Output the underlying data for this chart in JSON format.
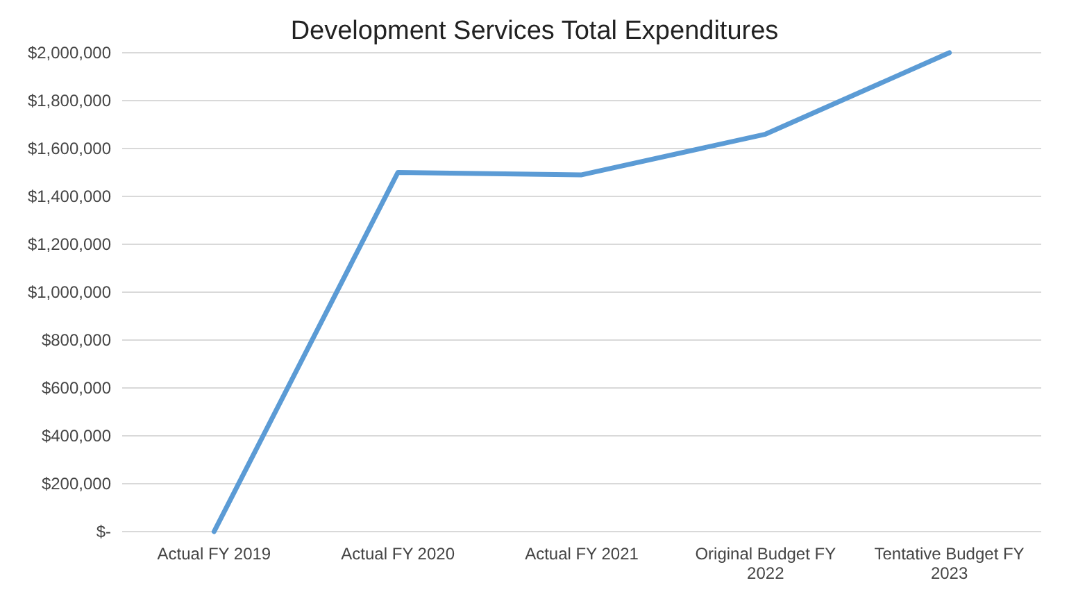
{
  "chart_data": {
    "type": "line",
    "title": "Development Services Total Expenditures",
    "categories": [
      "Actual FY 2019",
      "Actual FY 2020",
      "Actual FY 2021",
      "Original Budget FY 2022",
      "Tentative Budget FY 2023"
    ],
    "series": [
      {
        "color": "#5b9bd5",
        "values": [
          0,
          1500000,
          1490000,
          1660000,
          2000000
        ]
      }
    ],
    "ylim": [
      0,
      2000000
    ],
    "yticks": [
      {
        "value": 0,
        "label": "$-"
      },
      {
        "value": 200000,
        "label": "$200,000"
      },
      {
        "value": 400000,
        "label": "$400,000"
      },
      {
        "value": 600000,
        "label": "$600,000"
      },
      {
        "value": 800000,
        "label": "$800,000"
      },
      {
        "value": 1000000,
        "label": "$1,000,000"
      },
      {
        "value": 1200000,
        "label": "$1,200,000"
      },
      {
        "value": 1400000,
        "label": "$1,400,000"
      },
      {
        "value": 1600000,
        "label": "$1,600,000"
      },
      {
        "value": 1800000,
        "label": "$1,800,000"
      },
      {
        "value": 2000000,
        "label": "$2,000,000"
      }
    ],
    "grid": "y",
    "marker": "none",
    "line_style": "solid"
  }
}
